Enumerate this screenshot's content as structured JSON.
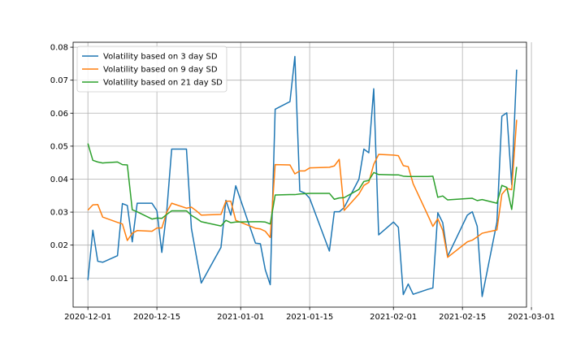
{
  "chart_data": {
    "type": "line",
    "title": "",
    "xlabel": "",
    "ylabel": "",
    "x_axis": "date",
    "xlim": [
      "2020-11-28",
      "2021-02-28"
    ],
    "ylim": [
      0.0012,
      0.0815
    ],
    "x_ticks": [
      {
        "date": "2020-12-01",
        "label": "2020-12-01"
      },
      {
        "date": "2020-12-15",
        "label": "2020-12-15"
      },
      {
        "date": "2021-01-01",
        "label": "2021-01-01"
      },
      {
        "date": "2021-01-15",
        "label": "2021-01-15"
      },
      {
        "date": "2021-02-01",
        "label": "2021-02-01"
      },
      {
        "date": "2021-02-15",
        "label": "2021-02-15"
      },
      {
        "date": "2021-03-01",
        "label": "2021-03-01"
      }
    ],
    "y_ticks": [
      {
        "value": 0.01,
        "label": "0.01"
      },
      {
        "value": 0.02,
        "label": "0.02"
      },
      {
        "value": 0.03,
        "label": "0.03"
      },
      {
        "value": 0.04,
        "label": "0.04"
      },
      {
        "value": 0.05,
        "label": "0.05"
      },
      {
        "value": 0.06,
        "label": "0.06"
      },
      {
        "value": 0.07,
        "label": "0.07"
      },
      {
        "value": 0.08,
        "label": "0.08"
      }
    ],
    "grid": true,
    "legend_position": "top-left",
    "series": [
      {
        "name": "Volatility based on 3 day SD",
        "color": "#1f77b4",
        "points": [
          [
            "2020-12-01",
            0.0094
          ],
          [
            "2020-12-02",
            0.0245
          ],
          [
            "2020-12-03",
            0.0151
          ],
          [
            "2020-12-04",
            0.0148
          ],
          [
            "2020-12-07",
            0.0168
          ],
          [
            "2020-12-08",
            0.0326
          ],
          [
            "2020-12-09",
            0.032
          ],
          [
            "2020-12-10",
            0.021
          ],
          [
            "2020-12-11",
            0.0327
          ],
          [
            "2020-12-14",
            0.0327
          ],
          [
            "2020-12-15",
            0.0304
          ],
          [
            "2020-12-16",
            0.0178
          ],
          [
            "2020-12-17",
            0.0303
          ],
          [
            "2020-12-18",
            0.0491
          ],
          [
            "2020-12-21",
            0.0491
          ],
          [
            "2020-12-22",
            0.0251
          ],
          [
            "2020-12-23",
            0.0167
          ],
          [
            "2020-12-24",
            0.0085
          ],
          [
            "2020-12-28",
            0.0193
          ],
          [
            "2020-12-29",
            0.0336
          ],
          [
            "2020-12-30",
            0.0291
          ],
          [
            "2020-12-31",
            0.038
          ],
          [
            "2021-01-04",
            0.0206
          ],
          [
            "2021-01-05",
            0.0204
          ],
          [
            "2021-01-06",
            0.0125
          ],
          [
            "2021-01-07",
            0.008
          ],
          [
            "2021-01-08",
            0.0612
          ],
          [
            "2021-01-11",
            0.0635
          ],
          [
            "2021-01-12",
            0.0772
          ],
          [
            "2021-01-13",
            0.0364
          ],
          [
            "2021-01-14",
            0.0358
          ],
          [
            "2021-01-15",
            0.0342
          ],
          [
            "2021-01-19",
            0.0182
          ],
          [
            "2021-01-20",
            0.0301
          ],
          [
            "2021-01-21",
            0.0301
          ],
          [
            "2021-01-22",
            0.0314
          ],
          [
            "2021-01-25",
            0.04
          ],
          [
            "2021-01-26",
            0.0491
          ],
          [
            "2021-01-27",
            0.048
          ],
          [
            "2021-01-28",
            0.0674
          ],
          [
            "2021-01-29",
            0.0231
          ],
          [
            "2021-02-01",
            0.027
          ],
          [
            "2021-02-02",
            0.0254
          ],
          [
            "2021-02-03",
            0.005
          ],
          [
            "2021-02-04",
            0.0082
          ],
          [
            "2021-02-05",
            0.0051
          ],
          [
            "2021-02-08",
            0.0066
          ],
          [
            "2021-02-09",
            0.007
          ],
          [
            "2021-02-10",
            0.0298
          ],
          [
            "2021-02-11",
            0.0268
          ],
          [
            "2021-02-12",
            0.0166
          ],
          [
            "2021-02-16",
            0.0291
          ],
          [
            "2021-02-17",
            0.0301
          ],
          [
            "2021-02-18",
            0.0257
          ],
          [
            "2021-02-19",
            0.0044
          ],
          [
            "2021-02-22",
            0.027
          ],
          [
            "2021-02-23",
            0.0591
          ],
          [
            "2021-02-24",
            0.0601
          ],
          [
            "2021-02-25",
            0.0383
          ],
          [
            "2021-02-26",
            0.0732
          ]
        ]
      },
      {
        "name": "Volatility based on 9 day SD",
        "color": "#ff7f0e",
        "points": [
          [
            "2020-12-01",
            0.0306
          ],
          [
            "2020-12-02",
            0.0322
          ],
          [
            "2020-12-03",
            0.0323
          ],
          [
            "2020-12-04",
            0.0285
          ],
          [
            "2020-12-07",
            0.0269
          ],
          [
            "2020-12-08",
            0.0264
          ],
          [
            "2020-12-09",
            0.0214
          ],
          [
            "2020-12-10",
            0.0236
          ],
          [
            "2020-12-11",
            0.0244
          ],
          [
            "2020-12-14",
            0.0242
          ],
          [
            "2020-12-15",
            0.0252
          ],
          [
            "2020-12-16",
            0.0252
          ],
          [
            "2020-12-17",
            0.03
          ],
          [
            "2020-12-18",
            0.0327
          ],
          [
            "2020-12-21",
            0.0312
          ],
          [
            "2020-12-22",
            0.0315
          ],
          [
            "2020-12-23",
            0.0304
          ],
          [
            "2020-12-24",
            0.0291
          ],
          [
            "2020-12-28",
            0.0293
          ],
          [
            "2020-12-29",
            0.0333
          ],
          [
            "2020-12-30",
            0.0333
          ],
          [
            "2020-12-31",
            0.0275
          ],
          [
            "2021-01-04",
            0.0251
          ],
          [
            "2021-01-05",
            0.0249
          ],
          [
            "2021-01-06",
            0.0242
          ],
          [
            "2021-01-07",
            0.0223
          ],
          [
            "2021-01-08",
            0.0444
          ],
          [
            "2021-01-11",
            0.0443
          ],
          [
            "2021-01-12",
            0.0416
          ],
          [
            "2021-01-13",
            0.0425
          ],
          [
            "2021-01-14",
            0.0425
          ],
          [
            "2021-01-15",
            0.0434
          ],
          [
            "2021-01-19",
            0.0436
          ],
          [
            "2021-01-20",
            0.044
          ],
          [
            "2021-01-21",
            0.046
          ],
          [
            "2021-01-22",
            0.0305
          ],
          [
            "2021-01-25",
            0.0355
          ],
          [
            "2021-01-26",
            0.0381
          ],
          [
            "2021-01-27",
            0.039
          ],
          [
            "2021-01-28",
            0.0445
          ],
          [
            "2021-01-29",
            0.0475
          ],
          [
            "2021-02-01",
            0.0473
          ],
          [
            "2021-02-02",
            0.0471
          ],
          [
            "2021-02-03",
            0.0441
          ],
          [
            "2021-02-04",
            0.0438
          ],
          [
            "2021-02-05",
            0.0386
          ],
          [
            "2021-02-08",
            0.029
          ],
          [
            "2021-02-09",
            0.0257
          ],
          [
            "2021-02-10",
            0.028
          ],
          [
            "2021-02-11",
            0.0245
          ],
          [
            "2021-02-12",
            0.0163
          ],
          [
            "2021-02-16",
            0.021
          ],
          [
            "2021-02-17",
            0.0215
          ],
          [
            "2021-02-18",
            0.0225
          ],
          [
            "2021-02-19",
            0.0236
          ],
          [
            "2021-02-22",
            0.0246
          ],
          [
            "2021-02-23",
            0.0354
          ],
          [
            "2021-02-24",
            0.0372
          ],
          [
            "2021-02-25",
            0.0368
          ],
          [
            "2021-02-26",
            0.058
          ]
        ]
      },
      {
        "name": "Volatility based on 21 day SD",
        "color": "#2ca02c",
        "points": [
          [
            "2020-12-01",
            0.0508
          ],
          [
            "2020-12-02",
            0.0457
          ],
          [
            "2020-12-03",
            0.0452
          ],
          [
            "2020-12-04",
            0.0449
          ],
          [
            "2020-12-07",
            0.0452
          ],
          [
            "2020-12-08",
            0.0444
          ],
          [
            "2020-12-09",
            0.0443
          ],
          [
            "2020-12-10",
            0.0307
          ],
          [
            "2020-12-11",
            0.0301
          ],
          [
            "2020-12-14",
            0.0279
          ],
          [
            "2020-12-15",
            0.0282
          ],
          [
            "2020-12-16",
            0.0281
          ],
          [
            "2020-12-17",
            0.0293
          ],
          [
            "2020-12-18",
            0.0304
          ],
          [
            "2020-12-21",
            0.0304
          ],
          [
            "2020-12-22",
            0.029
          ],
          [
            "2020-12-23",
            0.0281
          ],
          [
            "2020-12-24",
            0.0271
          ],
          [
            "2020-12-28",
            0.0258
          ],
          [
            "2020-12-29",
            0.0275
          ],
          [
            "2020-12-30",
            0.0268
          ],
          [
            "2020-12-31",
            0.027
          ],
          [
            "2021-01-04",
            0.0271
          ],
          [
            "2021-01-05",
            0.0271
          ],
          [
            "2021-01-06",
            0.027
          ],
          [
            "2021-01-07",
            0.0264
          ],
          [
            "2021-01-08",
            0.0352
          ],
          [
            "2021-01-11",
            0.0353
          ],
          [
            "2021-01-12",
            0.0353
          ],
          [
            "2021-01-13",
            0.0355
          ],
          [
            "2021-01-14",
            0.0356
          ],
          [
            "2021-01-15",
            0.0357
          ],
          [
            "2021-01-19",
            0.0357
          ],
          [
            "2021-01-20",
            0.0339
          ],
          [
            "2021-01-21",
            0.0343
          ],
          [
            "2021-01-22",
            0.0344
          ],
          [
            "2021-01-25",
            0.0369
          ],
          [
            "2021-01-26",
            0.0393
          ],
          [
            "2021-01-27",
            0.0396
          ],
          [
            "2021-01-28",
            0.042
          ],
          [
            "2021-01-29",
            0.0414
          ],
          [
            "2021-02-01",
            0.0413
          ],
          [
            "2021-02-02",
            0.0413
          ],
          [
            "2021-02-03",
            0.0409
          ],
          [
            "2021-02-04",
            0.0408
          ],
          [
            "2021-02-05",
            0.0408
          ],
          [
            "2021-02-08",
            0.0408
          ],
          [
            "2021-02-09",
            0.0409
          ],
          [
            "2021-02-10",
            0.0345
          ],
          [
            "2021-02-11",
            0.0349
          ],
          [
            "2021-02-12",
            0.0337
          ],
          [
            "2021-02-16",
            0.0341
          ],
          [
            "2021-02-17",
            0.0342
          ],
          [
            "2021-02-18",
            0.0335
          ],
          [
            "2021-02-19",
            0.0338
          ],
          [
            "2021-02-22",
            0.0327
          ],
          [
            "2021-02-23",
            0.0381
          ],
          [
            "2021-02-24",
            0.0375
          ],
          [
            "2021-02-25",
            0.0308
          ],
          [
            "2021-02-26",
            0.0437
          ]
        ]
      }
    ]
  }
}
